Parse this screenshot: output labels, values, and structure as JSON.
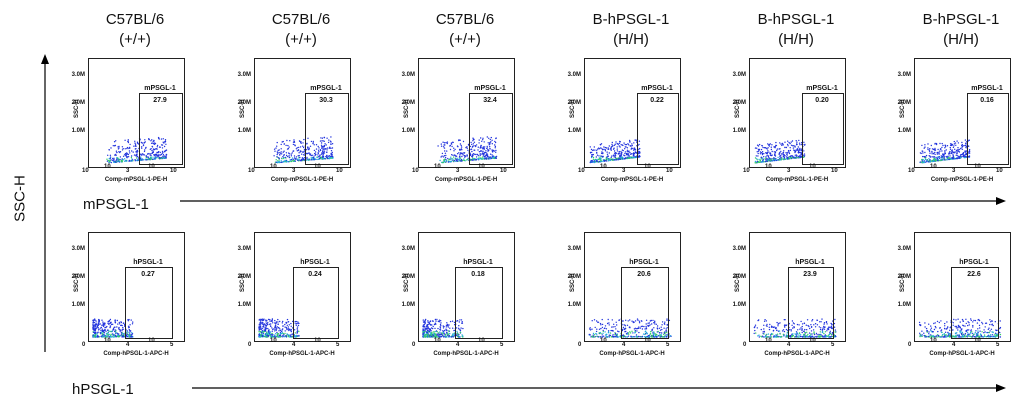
{
  "axis": {
    "y_title": "SSC-H"
  },
  "columns": [
    {
      "line1": "C57BL/6",
      "line2": "(+/+)"
    },
    {
      "line1": "C57BL/6",
      "line2": "(+/+)"
    },
    {
      "line1": "C57BL/6",
      "line2": "(+/+)"
    },
    {
      "line1": "B-hPSGL-1",
      "line2": "(H/H)"
    },
    {
      "line1": "B-hPSGL-1",
      "line2": "(H/H)"
    },
    {
      "line1": "B-hPSGL-1",
      "line2": "(H/H)"
    }
  ],
  "rows": [
    {
      "label": "mPSGL-1",
      "gate_name": "mPSGL-1",
      "x_axis_label": "Comp-mPSGL-1-PE-H",
      "x_ticks": [
        "10",
        "10",
        "3",
        "10",
        "10"
      ],
      "values": [
        "27.9",
        "30.3",
        "32.4",
        "0.22",
        "0.20",
        "0.16"
      ],
      "density": [
        1,
        1,
        1,
        0.9,
        0.9,
        0.9
      ]
    },
    {
      "label": "hPSGL-1",
      "gate_name": "hPSGL-1",
      "x_axis_label": "Comp-hPSGL-1-APC-H",
      "x_ticks": [
        "0",
        "10",
        "4",
        "10",
        "5"
      ],
      "values": [
        "0.27",
        "0.24",
        "0.18",
        "20.6",
        "23.9",
        "22.6"
      ],
      "density": [
        0.5,
        0.5,
        0.5,
        1,
        1,
        1
      ]
    }
  ],
  "y_ticks": [
    "3.0M",
    "2.0M",
    "1.0M"
  ],
  "y_axis_label": "SSC-H",
  "colors": {
    "low": "#2233dd",
    "mid": "#22aadd",
    "high": "#33cc66"
  }
}
